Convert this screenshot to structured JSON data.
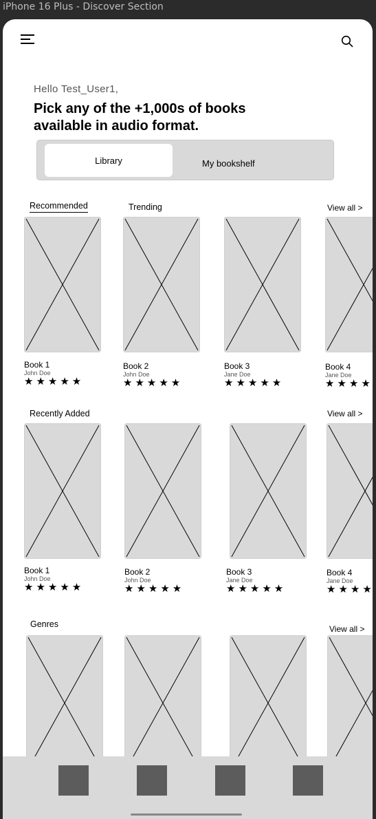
{
  "frame_title": "iPhone 16 Plus - Discover Section",
  "header": {
    "menu_icon": "hamburger-menu-icon",
    "search_icon": "search-icon"
  },
  "greeting": "Hello Test_User1,",
  "headline": "Pick any of the +1,000s of books available in audio format.",
  "segmented": {
    "active": "Library",
    "inactive": "My bookshelf"
  },
  "sections": {
    "recommended": {
      "tabs": [
        "Recommended",
        "Trending"
      ],
      "view_all": "View all >",
      "books": [
        {
          "title": "Book 1",
          "author": "John Doe",
          "stars": "★★★★★"
        },
        {
          "title": "Book 2",
          "author": "John Doe",
          "stars": "★★★★★"
        },
        {
          "title": "Book 3",
          "author": "Jane Doe",
          "stars": "★★★★★"
        },
        {
          "title": "Book 4",
          "author": "Jane Doe",
          "stars": "★★★★★"
        }
      ]
    },
    "recently_added": {
      "title": "Recently Added",
      "view_all": "View all >",
      "books": [
        {
          "title": "Book 1",
          "author": "John Doe",
          "stars": "★★★★★"
        },
        {
          "title": "Book 2",
          "author": "John Doe",
          "stars": "★★★★★"
        },
        {
          "title": "Book 3",
          "author": "Jane Doe",
          "stars": "★★★★★"
        },
        {
          "title": "Book 4",
          "author": "Jane Doe",
          "stars": "★★★★★"
        }
      ]
    },
    "genres": {
      "title": "Genres",
      "view_all": "View all >"
    }
  },
  "colors": {
    "placeholder": "#d9d9d9",
    "tab_icon": "#5c5c5c"
  }
}
